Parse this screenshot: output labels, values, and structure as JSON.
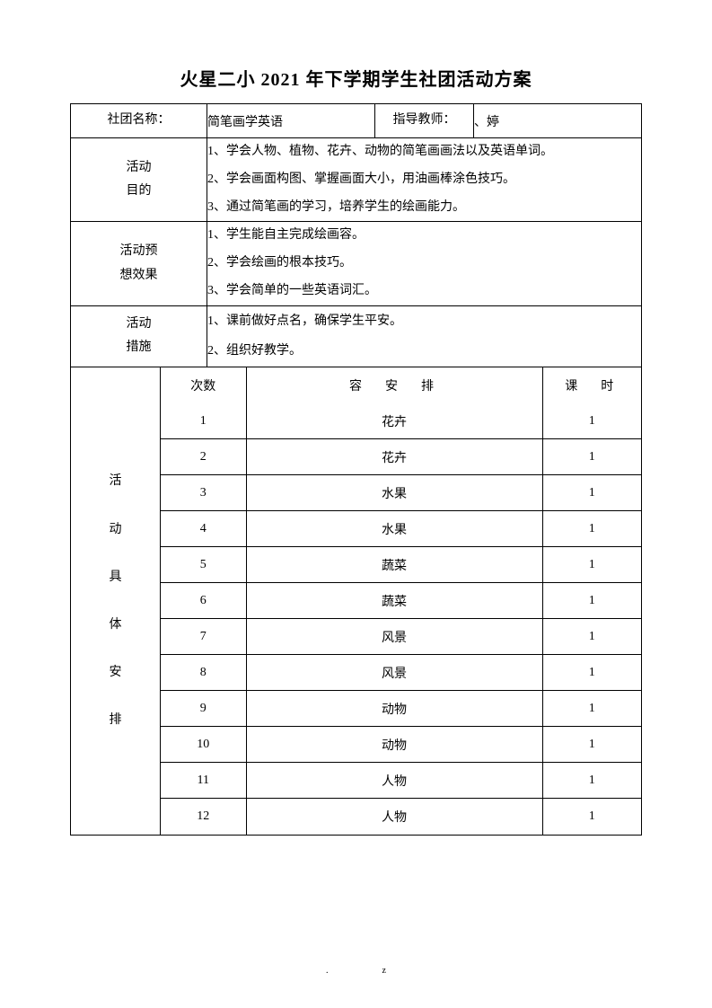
{
  "title": "火星二小 2021 年下学期学生社团活动方案",
  "header": {
    "club_name_label": "社团名称：",
    "club_name_value": "简笔画学英语",
    "teacher_label": "指导教师：",
    "teacher_value": "、婷"
  },
  "sections": {
    "goal": {
      "label_line1": "活动",
      "label_line2": "目的",
      "items": [
        "1、学会人物、植物、花卉、动物的简笔画画法以及英语单词。",
        "2、学会画面构图、掌握画面大小，用油画棒涂色技巧。",
        "3、通过简笔画的学习，培养学生的绘画能力。"
      ]
    },
    "expect": {
      "label_line1": "活动预",
      "label_line2": "想效果",
      "items": [
        "1、学生能自主完成绘画容。",
        "2、学会绘画的根本技巧。",
        "3、学会简单的一些英语词汇。"
      ]
    },
    "measure": {
      "label_line1": "活动",
      "label_line2": "措施",
      "items": [
        "1、课前做好点名，确保学生平安。",
        "2、组织好教学。"
      ]
    }
  },
  "schedule": {
    "side_label": "活动具体安排",
    "columns": {
      "num": "次数",
      "content": "容　安　排",
      "hours": "课　时"
    },
    "rows": [
      {
        "num": "1",
        "content": "花卉",
        "hours": "1"
      },
      {
        "num": "2",
        "content": "花卉",
        "hours": "1"
      },
      {
        "num": "3",
        "content": "水果",
        "hours": "1"
      },
      {
        "num": "4",
        "content": "水果",
        "hours": "1"
      },
      {
        "num": "5",
        "content": "蔬菜",
        "hours": "1"
      },
      {
        "num": "6",
        "content": "蔬菜",
        "hours": "1"
      },
      {
        "num": "7",
        "content": "风景",
        "hours": "1"
      },
      {
        "num": "8",
        "content": "风景",
        "hours": "1"
      },
      {
        "num": "9",
        "content": "动物",
        "hours": "1"
      },
      {
        "num": "10",
        "content": "动物",
        "hours": "1"
      },
      {
        "num": "11",
        "content": "人物",
        "hours": "1"
      },
      {
        "num": "12",
        "content": "人物",
        "hours": "1"
      }
    ]
  },
  "footer": ".z"
}
